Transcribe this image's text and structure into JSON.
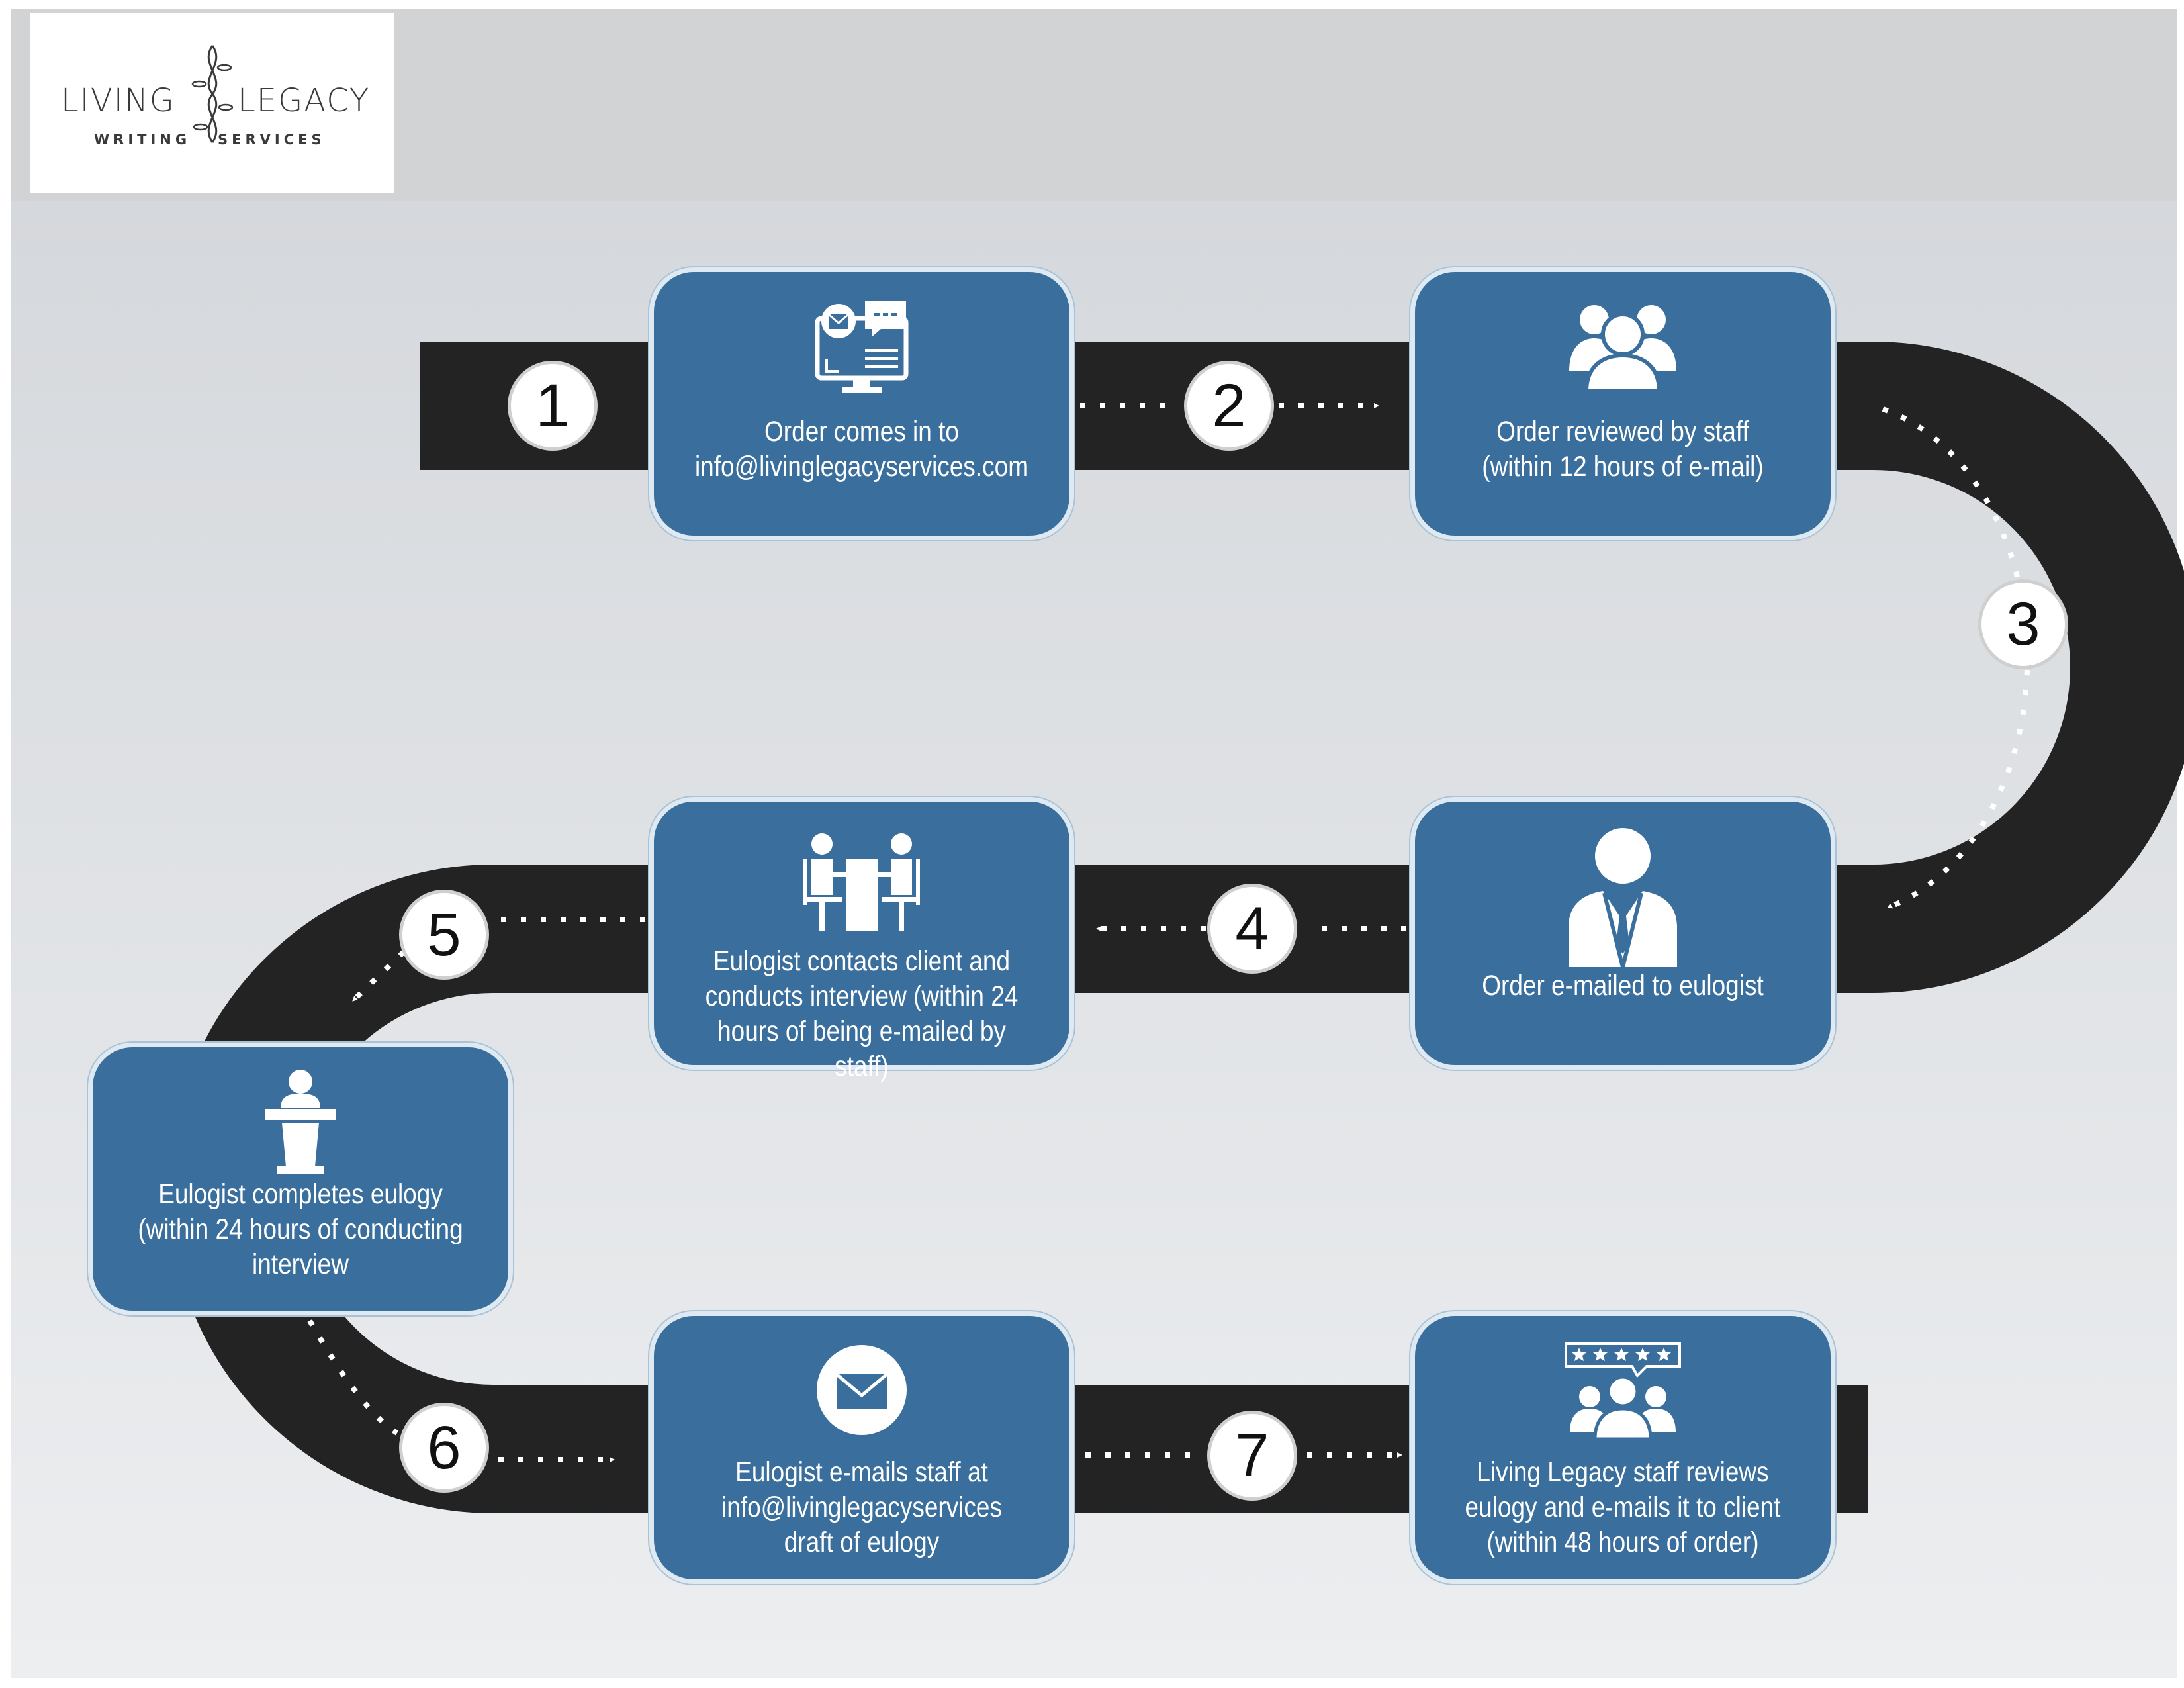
{
  "logo": {
    "word_left": "LIVING",
    "word_right": "LEGACY",
    "sub_left": "WRITING",
    "sub_right": "SERVICES"
  },
  "steps": [
    {
      "number": "1",
      "lines": [
        "Order comes in to",
        "info@livinglegacyservices.com"
      ],
      "icon": "computer-email-icon"
    },
    {
      "number": "2",
      "lines": [
        "Order reviewed by staff",
        "(within 12 hours of e-mail)"
      ],
      "icon": "group-people-icon"
    },
    {
      "number": "3",
      "lines": [
        "Order e-mailed to eulogist"
      ],
      "icon": "businessman-icon"
    },
    {
      "number": "4",
      "lines": [
        "Eulogist contacts client and",
        "conducts interview (within 24",
        "hours of being e-mailed by staff)"
      ],
      "icon": "interview-table-icon"
    },
    {
      "number": "5",
      "lines": [
        "Eulogist completes eulogy",
        "(within 24 hours of conducting",
        "interview"
      ],
      "icon": "podium-speaker-icon"
    },
    {
      "number": "6",
      "lines": [
        "Eulogist e-mails staff at",
        "info@livinglegacyservices",
        "draft of eulogy"
      ],
      "icon": "envelope-icon"
    },
    {
      "number": "7",
      "lines": [
        "Living Legacy staff reviews",
        "eulogy and e-mails it to client",
        "(within 48 hours of order)"
      ],
      "icon": "rating-group-icon"
    }
  ],
  "colors": {
    "card": "#3a6f9d",
    "road": "#232323",
    "header_band": "#d2d3d5",
    "background": "#e4e7ea"
  }
}
